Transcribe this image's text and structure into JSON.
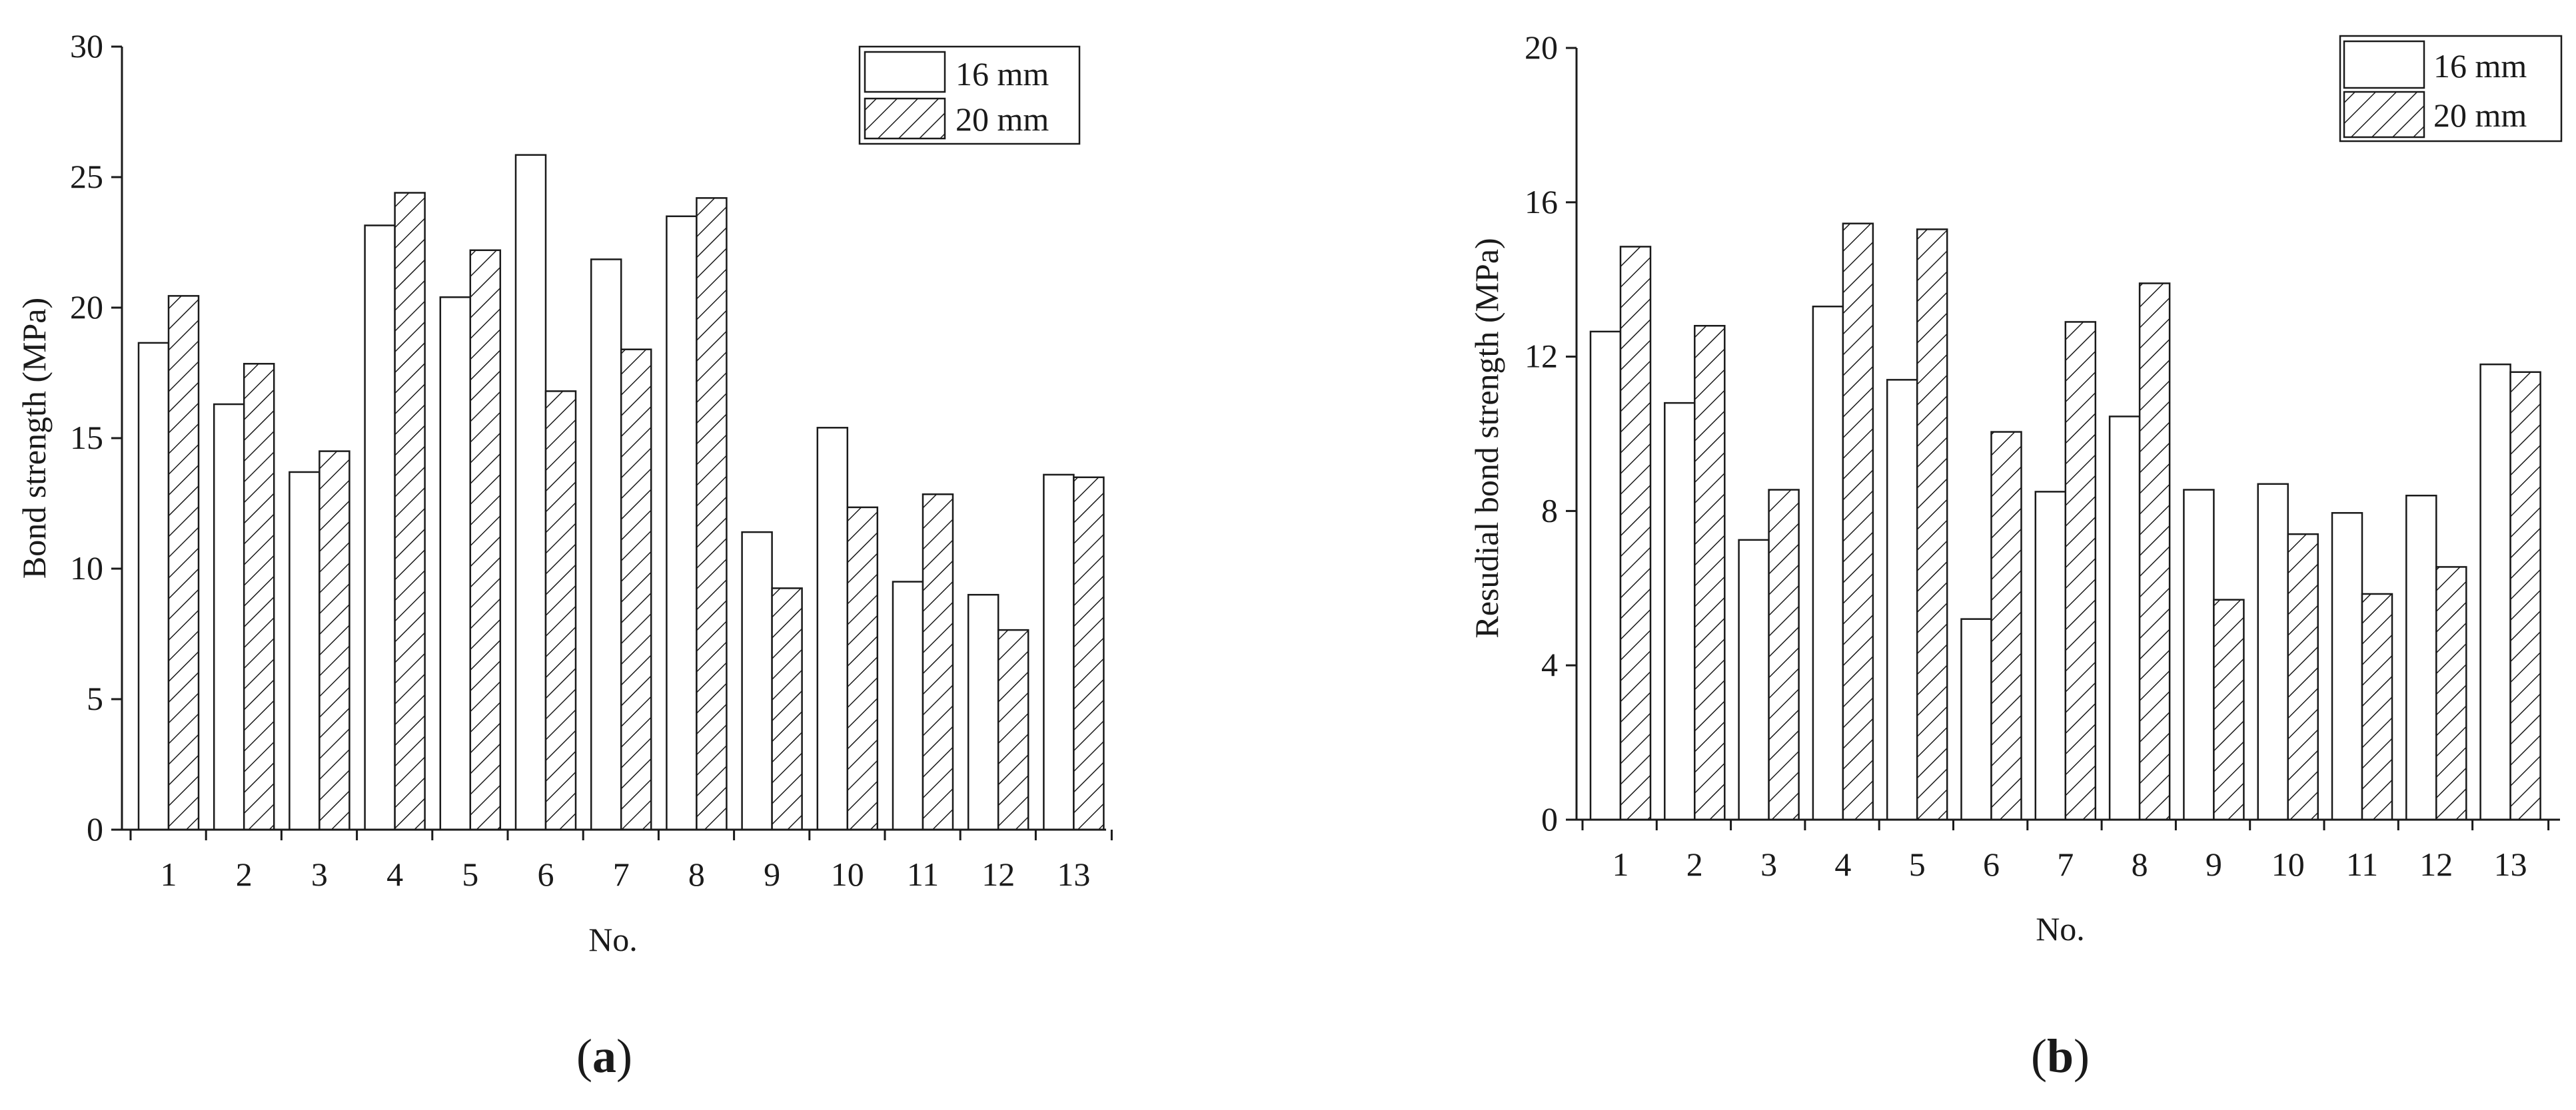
{
  "chart_data": [
    {
      "type": "bar",
      "categories": [
        "1",
        "2",
        "3",
        "4",
        "5",
        "6",
        "7",
        "8",
        "9",
        "10",
        "11",
        "12",
        "13"
      ],
      "series": [
        {
          "name": "16 mm",
          "pattern": "plain",
          "values": [
            18.65,
            16.3,
            13.7,
            23.15,
            20.4,
            25.85,
            21.85,
            23.5,
            11.4,
            15.4,
            9.5,
            9.0,
            13.6
          ]
        },
        {
          "name": "20 mm",
          "pattern": "hatched",
          "values": [
            20.45,
            17.85,
            14.5,
            24.4,
            22.2,
            16.8,
            18.4,
            24.2,
            9.25,
            12.35,
            12.85,
            7.65,
            13.5
          ]
        }
      ],
      "xlabel": "No.",
      "ylabel": "Bond strength (MPa)",
      "ylim": [
        0,
        30
      ],
      "yticks": [
        "0",
        "5",
        "10",
        "15",
        "20",
        "25",
        "30"
      ],
      "legend_position": "top-right",
      "grid": false,
      "caption_letter": "a"
    },
    {
      "type": "bar",
      "categories": [
        "1",
        "2",
        "3",
        "4",
        "5",
        "6",
        "7",
        "8",
        "9",
        "10",
        "11",
        "12",
        "13"
      ],
      "series": [
        {
          "name": "16 mm",
          "pattern": "plain",
          "values": [
            12.65,
            10.8,
            7.25,
            13.3,
            11.4,
            5.2,
            8.5,
            10.45,
            8.55,
            8.7,
            7.95,
            8.4,
            11.8
          ]
        },
        {
          "name": "20 mm",
          "pattern": "hatched",
          "values": [
            14.85,
            12.8,
            8.55,
            15.45,
            15.3,
            10.05,
            12.9,
            13.9,
            5.7,
            7.4,
            5.85,
            6.55,
            11.6
          ]
        }
      ],
      "xlabel": "No.",
      "ylabel": "Resudial bond strength (MPa)",
      "ylim": [
        0,
        20
      ],
      "yticks": [
        "0",
        "4",
        "8",
        "12",
        "16",
        "20"
      ],
      "legend_position": "top-right",
      "grid": false,
      "caption_letter": "b"
    }
  ],
  "colors": {
    "ink": "#1a1a1a",
    "bar_fill": "#ffffff"
  }
}
